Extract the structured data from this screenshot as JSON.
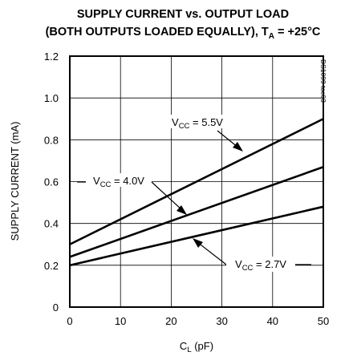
{
  "chart_data": {
    "type": "line",
    "title_line1": "SUPPLY CURRENT vs. OUTPUT LOAD",
    "title_line2_main": "(BOTH OUTPUTS LOADED EQUALLY), T",
    "title_line2_sub": "A",
    "title_line2_tail": " = +25°C",
    "xlabel_main": "C",
    "xlabel_sub": "L",
    "xlabel_tail": " (pF)",
    "ylabel": "SUPPLY CURRENT (mA)",
    "side_label": "DS1099 toc03",
    "xlim": [
      0,
      50
    ],
    "ylim": [
      0,
      1.2
    ],
    "x_ticks": [
      0,
      10,
      20,
      30,
      40,
      50
    ],
    "y_ticks": [
      0,
      0.2,
      0.4,
      0.6,
      0.8,
      1.0,
      1.2
    ],
    "x_tick_labels": [
      "0",
      "10",
      "20",
      "30",
      "40",
      "50"
    ],
    "y_tick_labels": [
      "0",
      "0.2",
      "0.4",
      "0.6",
      "0.8",
      "1.0",
      "1.2"
    ],
    "grid": true,
    "series": [
      {
        "name_main": "V",
        "name_sub": "CC",
        "name_tail": " = 5.5V",
        "x": [
          0,
          50
        ],
        "values": [
          0.3,
          0.9
        ]
      },
      {
        "name_main": "V",
        "name_sub": "CC",
        "name_tail": " = 4.0V",
        "x": [
          0,
          50
        ],
        "values": [
          0.24,
          0.67
        ]
      },
      {
        "name_main": "V",
        "name_sub": "CC",
        "name_tail": " = 2.7V",
        "x": [
          0,
          50
        ],
        "values": [
          0.2,
          0.48
        ]
      }
    ]
  }
}
